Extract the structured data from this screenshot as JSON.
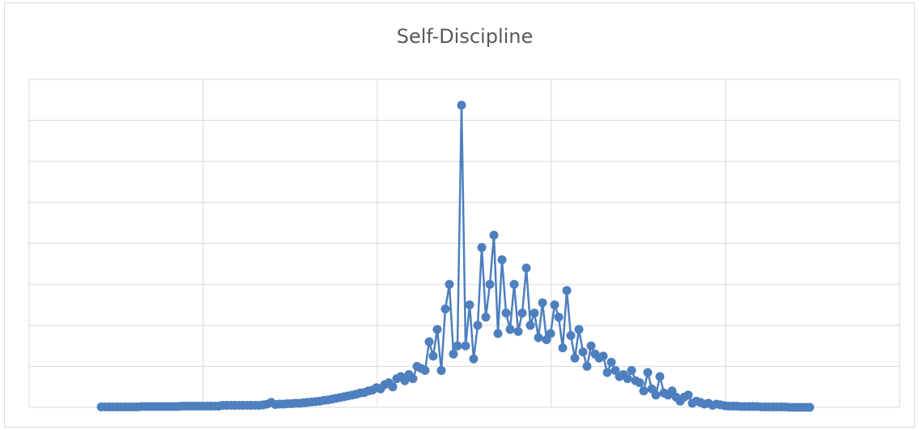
{
  "chart_data": {
    "type": "line",
    "title": "Self-Discipline",
    "x": [
      0,
      1,
      2,
      3,
      4,
      5,
      6,
      7,
      8,
      9,
      10,
      11,
      12,
      13,
      14,
      15,
      16,
      17,
      18,
      19,
      20,
      21,
      22,
      23,
      24,
      25,
      26,
      27,
      28,
      29,
      30,
      31,
      32,
      33,
      34,
      35,
      36,
      37,
      38,
      39,
      40,
      41,
      42,
      43,
      44,
      45,
      46,
      47,
      48,
      49,
      50,
      51,
      52,
      53,
      54,
      55,
      56,
      57,
      58,
      59,
      60,
      61,
      62,
      63,
      64,
      65,
      66,
      67,
      68,
      69,
      70,
      71,
      72,
      73,
      74,
      75,
      76,
      77,
      78,
      79,
      80,
      81,
      82,
      83,
      84,
      85,
      86,
      87,
      88,
      89,
      90,
      91,
      92,
      93,
      94,
      95,
      96,
      97,
      98,
      99,
      100,
      101,
      102,
      103,
      104,
      105,
      106,
      107,
      108,
      109,
      110,
      111,
      112,
      113,
      114,
      115,
      116,
      117,
      118,
      119,
      120,
      121,
      122,
      123,
      124,
      125,
      126,
      127,
      128,
      129,
      130,
      131,
      132,
      133,
      134,
      135,
      136,
      137,
      138,
      139,
      140,
      141,
      142,
      143,
      144,
      145,
      146,
      147,
      148,
      149,
      150,
      151,
      152,
      153,
      154,
      155,
      156,
      157,
      158,
      159,
      160,
      161,
      162,
      163,
      164,
      165,
      166,
      167,
      168,
      169,
      170,
      171,
      172,
      173,
      174,
      175
    ],
    "series": [
      {
        "color": "#4e7fbe",
        "values": [
          0.01,
          0.01,
          0.01,
          0.01,
          0.01,
          0.01,
          0.01,
          0.01,
          0.01,
          0.01,
          0.02,
          0.02,
          0.02,
          0.02,
          0.02,
          0.02,
          0.02,
          0.02,
          0.02,
          0.02,
          0.03,
          0.03,
          0.03,
          0.03,
          0.03,
          0.03,
          0.03,
          0.03,
          0.03,
          0.03,
          0.05,
          0.05,
          0.05,
          0.05,
          0.05,
          0.05,
          0.05,
          0.05,
          0.05,
          0.05,
          0.06,
          0.08,
          0.12,
          0.07,
          0.08,
          0.08,
          0.09,
          0.09,
          0.1,
          0.1,
          0.11,
          0.12,
          0.13,
          0.14,
          0.15,
          0.17,
          0.18,
          0.2,
          0.22,
          0.24,
          0.26,
          0.28,
          0.3,
          0.32,
          0.35,
          0.36,
          0.4,
          0.42,
          0.48,
          0.45,
          0.55,
          0.6,
          0.5,
          0.7,
          0.75,
          0.65,
          0.8,
          0.7,
          1.0,
          0.95,
          0.9,
          1.6,
          1.25,
          1.9,
          0.9,
          2.4,
          3.0,
          1.3,
          1.5,
          7.37,
          1.5,
          2.5,
          1.18,
          2.0,
          3.9,
          2.2,
          3.0,
          4.2,
          1.8,
          3.6,
          2.3,
          1.9,
          3.0,
          1.85,
          2.3,
          3.4,
          2.0,
          2.3,
          1.7,
          2.55,
          1.65,
          1.8,
          2.5,
          2.2,
          1.45,
          2.85,
          1.75,
          1.2,
          1.9,
          1.35,
          1.0,
          1.5,
          1.3,
          1.2,
          1.25,
          0.85,
          1.1,
          0.9,
          0.75,
          0.8,
          0.7,
          0.9,
          0.65,
          0.6,
          0.4,
          0.85,
          0.45,
          0.3,
          0.75,
          0.35,
          0.3,
          0.4,
          0.25,
          0.15,
          0.25,
          0.3,
          0.1,
          0.15,
          0.12,
          0.08,
          0.1,
          0.05,
          0.08,
          0.06,
          0.04,
          0.03,
          0.03,
          0.03,
          0.02,
          0.02,
          0.02,
          0.02,
          0.02,
          0.01,
          0.01,
          0.01,
          0.01,
          0.01,
          0.01,
          0.01,
          0.0,
          0.0,
          0.0,
          0.0,
          0.0,
          0.0
        ]
      }
    ],
    "xlim": [
      -17.8,
      197.2
    ],
    "xticks": [
      -17.8,
      25.2,
      68.2,
      111.2,
      154.2,
      197.2
    ],
    "ylim": [
      0,
      8
    ],
    "yticks": [
      0,
      1,
      2,
      3,
      4,
      5,
      6,
      7,
      8
    ],
    "grid": true
  }
}
